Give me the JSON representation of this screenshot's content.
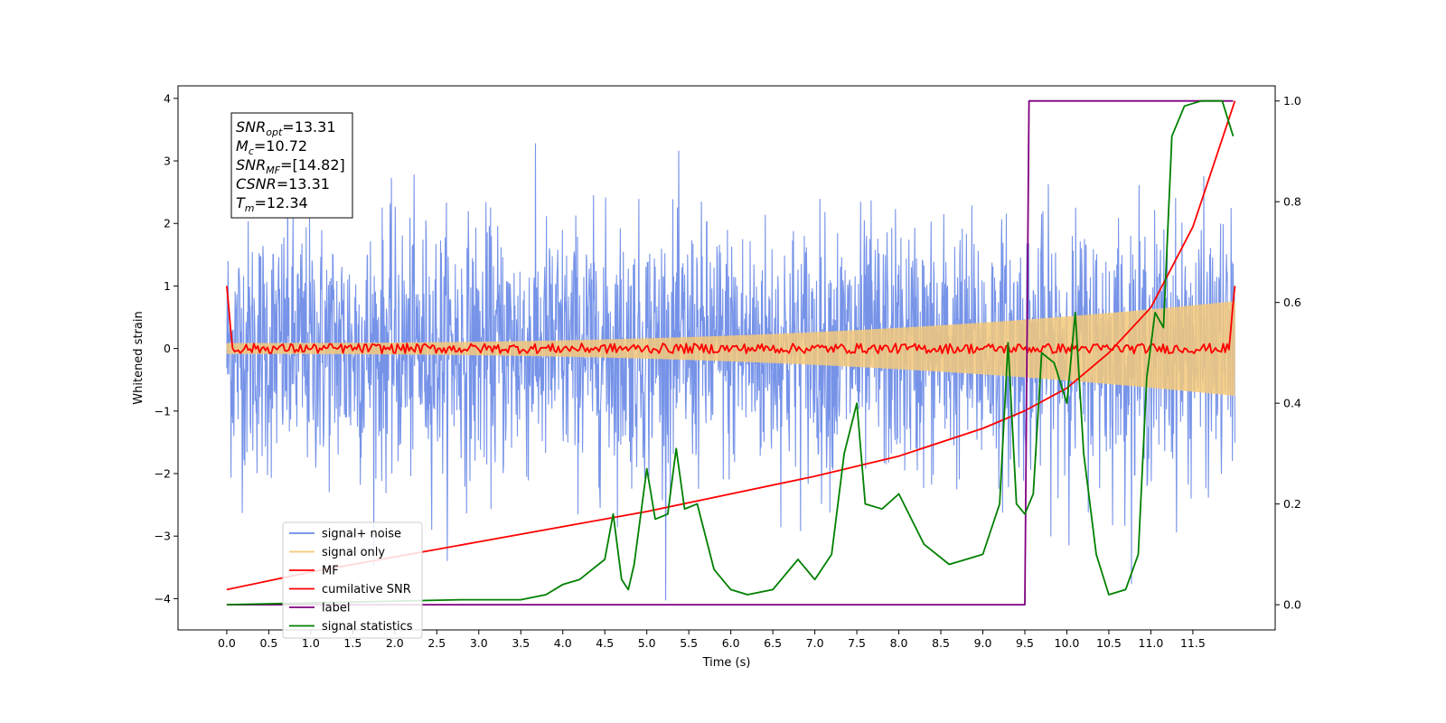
{
  "chart_data": {
    "type": "line",
    "xlabel": "Time (s)",
    "ylabel": "Whitened strain",
    "xlim": [
      -0.58,
      12.48
    ],
    "ylim": [
      -4.5,
      4.2
    ],
    "ylim_right": [
      -0.05,
      1.03
    ],
    "x_ticks": [
      "0.0",
      "0.5",
      "1.0",
      "1.5",
      "2.0",
      "2.5",
      "3.0",
      "3.5",
      "4.0",
      "4.5",
      "5.0",
      "5.5",
      "6.0",
      "6.5",
      "7.0",
      "7.5",
      "8.0",
      "8.5",
      "9.0",
      "9.5",
      "10.0",
      "10.5",
      "11.0",
      "11.5"
    ],
    "y_ticks": [
      "4",
      "3",
      "2",
      "1",
      "0",
      "−1",
      "−2",
      "−3",
      "−4"
    ],
    "y_ticks_right": [
      "1.0",
      "0.8",
      "0.6",
      "0.4",
      "0.2",
      "0.0"
    ],
    "legend_position": "lower-left",
    "annotation": [
      {
        "sym": "SNR",
        "sub": "opt",
        "val": "=13.31"
      },
      {
        "sym": "M",
        "sub": "c",
        "val": "=10.72"
      },
      {
        "sym": "SNR",
        "sub": "MF",
        "val": "=[14.82]"
      },
      {
        "sym": "CSNR",
        "sub": "",
        "val": "=13.31"
      },
      {
        "sym": "T",
        "sub": "m",
        "val": "=12.34"
      }
    ],
    "series": [
      {
        "name": "signal+ noise",
        "color": "#6a8ae6",
        "axis": "left",
        "kind": "noise",
        "x_range": [
          0,
          12
        ],
        "std": 1.0
      },
      {
        "name": "signal only",
        "color": "#f5c97a",
        "axis": "left",
        "kind": "chirp",
        "x_range": [
          0,
          12
        ],
        "amplitude_start": 0.08,
        "amplitude_end": 0.75
      },
      {
        "name": "MF",
        "color": "#ff0000",
        "axis": "left",
        "kind": "jitter",
        "x_range": [
          0,
          12
        ],
        "start": 1.0,
        "end": 1.0,
        "jitter": 0.05
      },
      {
        "name": "cumilative SNR",
        "color": "#ff0000",
        "axis": "right",
        "x": [
          0,
          1,
          2,
          3,
          4,
          5,
          6,
          7,
          8,
          9,
          9.5,
          10,
          10.5,
          11,
          11.5,
          12
        ],
        "y": [
          0.03,
          0.065,
          0.095,
          0.125,
          0.155,
          0.185,
          0.22,
          0.255,
          0.295,
          0.35,
          0.385,
          0.43,
          0.5,
          0.59,
          0.75,
          1.0
        ]
      },
      {
        "name": "label",
        "color": "#800080",
        "axis": "right",
        "x": [
          0,
          9.5,
          9.55,
          11.98
        ],
        "y": [
          0.0,
          0.0,
          1.0,
          1.0
        ]
      },
      {
        "name": "signal statistics",
        "color": "#008000",
        "axis": "right",
        "x": [
          0,
          2.8,
          3.5,
          3.8,
          4.0,
          4.2,
          4.35,
          4.5,
          4.6,
          4.7,
          4.78,
          4.85,
          5.0,
          5.1,
          5.25,
          5.35,
          5.45,
          5.6,
          5.8,
          6.0,
          6.2,
          6.5,
          6.8,
          7.0,
          7.2,
          7.35,
          7.5,
          7.6,
          7.8,
          8.0,
          8.3,
          8.6,
          8.8,
          9.0,
          9.2,
          9.3,
          9.4,
          9.5,
          9.6,
          9.7,
          9.85,
          10.0,
          10.1,
          10.2,
          10.35,
          10.5,
          10.7,
          10.85,
          10.95,
          11.05,
          11.15,
          11.25,
          11.4,
          11.6,
          11.85,
          11.98
        ],
        "y": [
          0.0,
          0.01,
          0.01,
          0.02,
          0.04,
          0.05,
          0.07,
          0.09,
          0.18,
          0.05,
          0.03,
          0.08,
          0.27,
          0.17,
          0.18,
          0.31,
          0.19,
          0.2,
          0.07,
          0.03,
          0.02,
          0.03,
          0.09,
          0.05,
          0.1,
          0.3,
          0.4,
          0.2,
          0.19,
          0.22,
          0.12,
          0.08,
          0.09,
          0.1,
          0.2,
          0.52,
          0.2,
          0.18,
          0.22,
          0.5,
          0.48,
          0.4,
          0.58,
          0.3,
          0.1,
          0.02,
          0.03,
          0.1,
          0.45,
          0.58,
          0.55,
          0.93,
          0.99,
          1.0,
          1.0,
          0.93
        ]
      }
    ]
  }
}
